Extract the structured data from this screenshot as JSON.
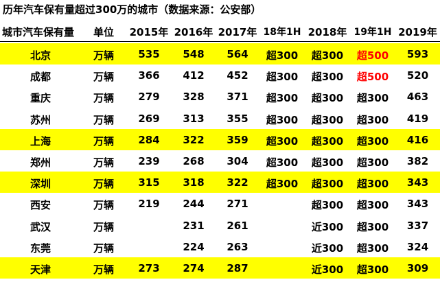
{
  "title": "历年汽车保有量超过300万的城市（数据来源：公安部）",
  "table": {
    "header": [
      "城市汽车保有量",
      "单位",
      "2015年",
      "2016年",
      "2017年",
      "18年1H",
      "2018年",
      "19年1H",
      "2019年"
    ],
    "rows": [
      [
        "北京",
        "万辆",
        "535",
        "548",
        "564",
        "超300",
        "超300",
        "超500",
        "593"
      ],
      [
        "成都",
        "万辆",
        "366",
        "412",
        "452",
        "超300",
        "超300",
        "超500",
        "520"
      ],
      [
        "重庆",
        "万辆",
        "279",
        "328",
        "371",
        "超300",
        "超300",
        "超300",
        "463"
      ],
      [
        "苏州",
        "万辆",
        "269",
        "313",
        "355",
        "超300",
        "超300",
        "超300",
        "419"
      ],
      [
        "上海",
        "万辆",
        "284",
        "322",
        "359",
        "超300",
        "超300",
        "超300",
        "416"
      ],
      [
        "郑州",
        "万辆",
        "239",
        "268",
        "304",
        "超300",
        "超300",
        "超300",
        "382"
      ],
      [
        "深圳",
        "万辆",
        "315",
        "318",
        "322",
        "超300",
        "超300",
        "超300",
        "343"
      ],
      [
        "西安",
        "万辆",
        "219",
        "244",
        "271",
        null,
        "超300",
        "超300",
        "343"
      ],
      [
        "武汉",
        "万辆",
        null,
        "231",
        "261",
        null,
        "近300",
        "超300",
        "337"
      ],
      [
        "东莞",
        "万辆",
        null,
        "224",
        "263",
        null,
        "近300",
        "超300",
        "324"
      ],
      [
        "天津",
        "万辆",
        "273",
        "274",
        "287",
        null,
        "近300",
        "超300",
        "309"
      ]
    ],
    "highlight_rows": [
      0,
      4,
      6,
      10
    ],
    "highlight_color": "#ffff00",
    "red_cells": [
      [
        0,
        7
      ],
      [
        1,
        7
      ]
    ],
    "red_color": "#ff0000"
  }
}
